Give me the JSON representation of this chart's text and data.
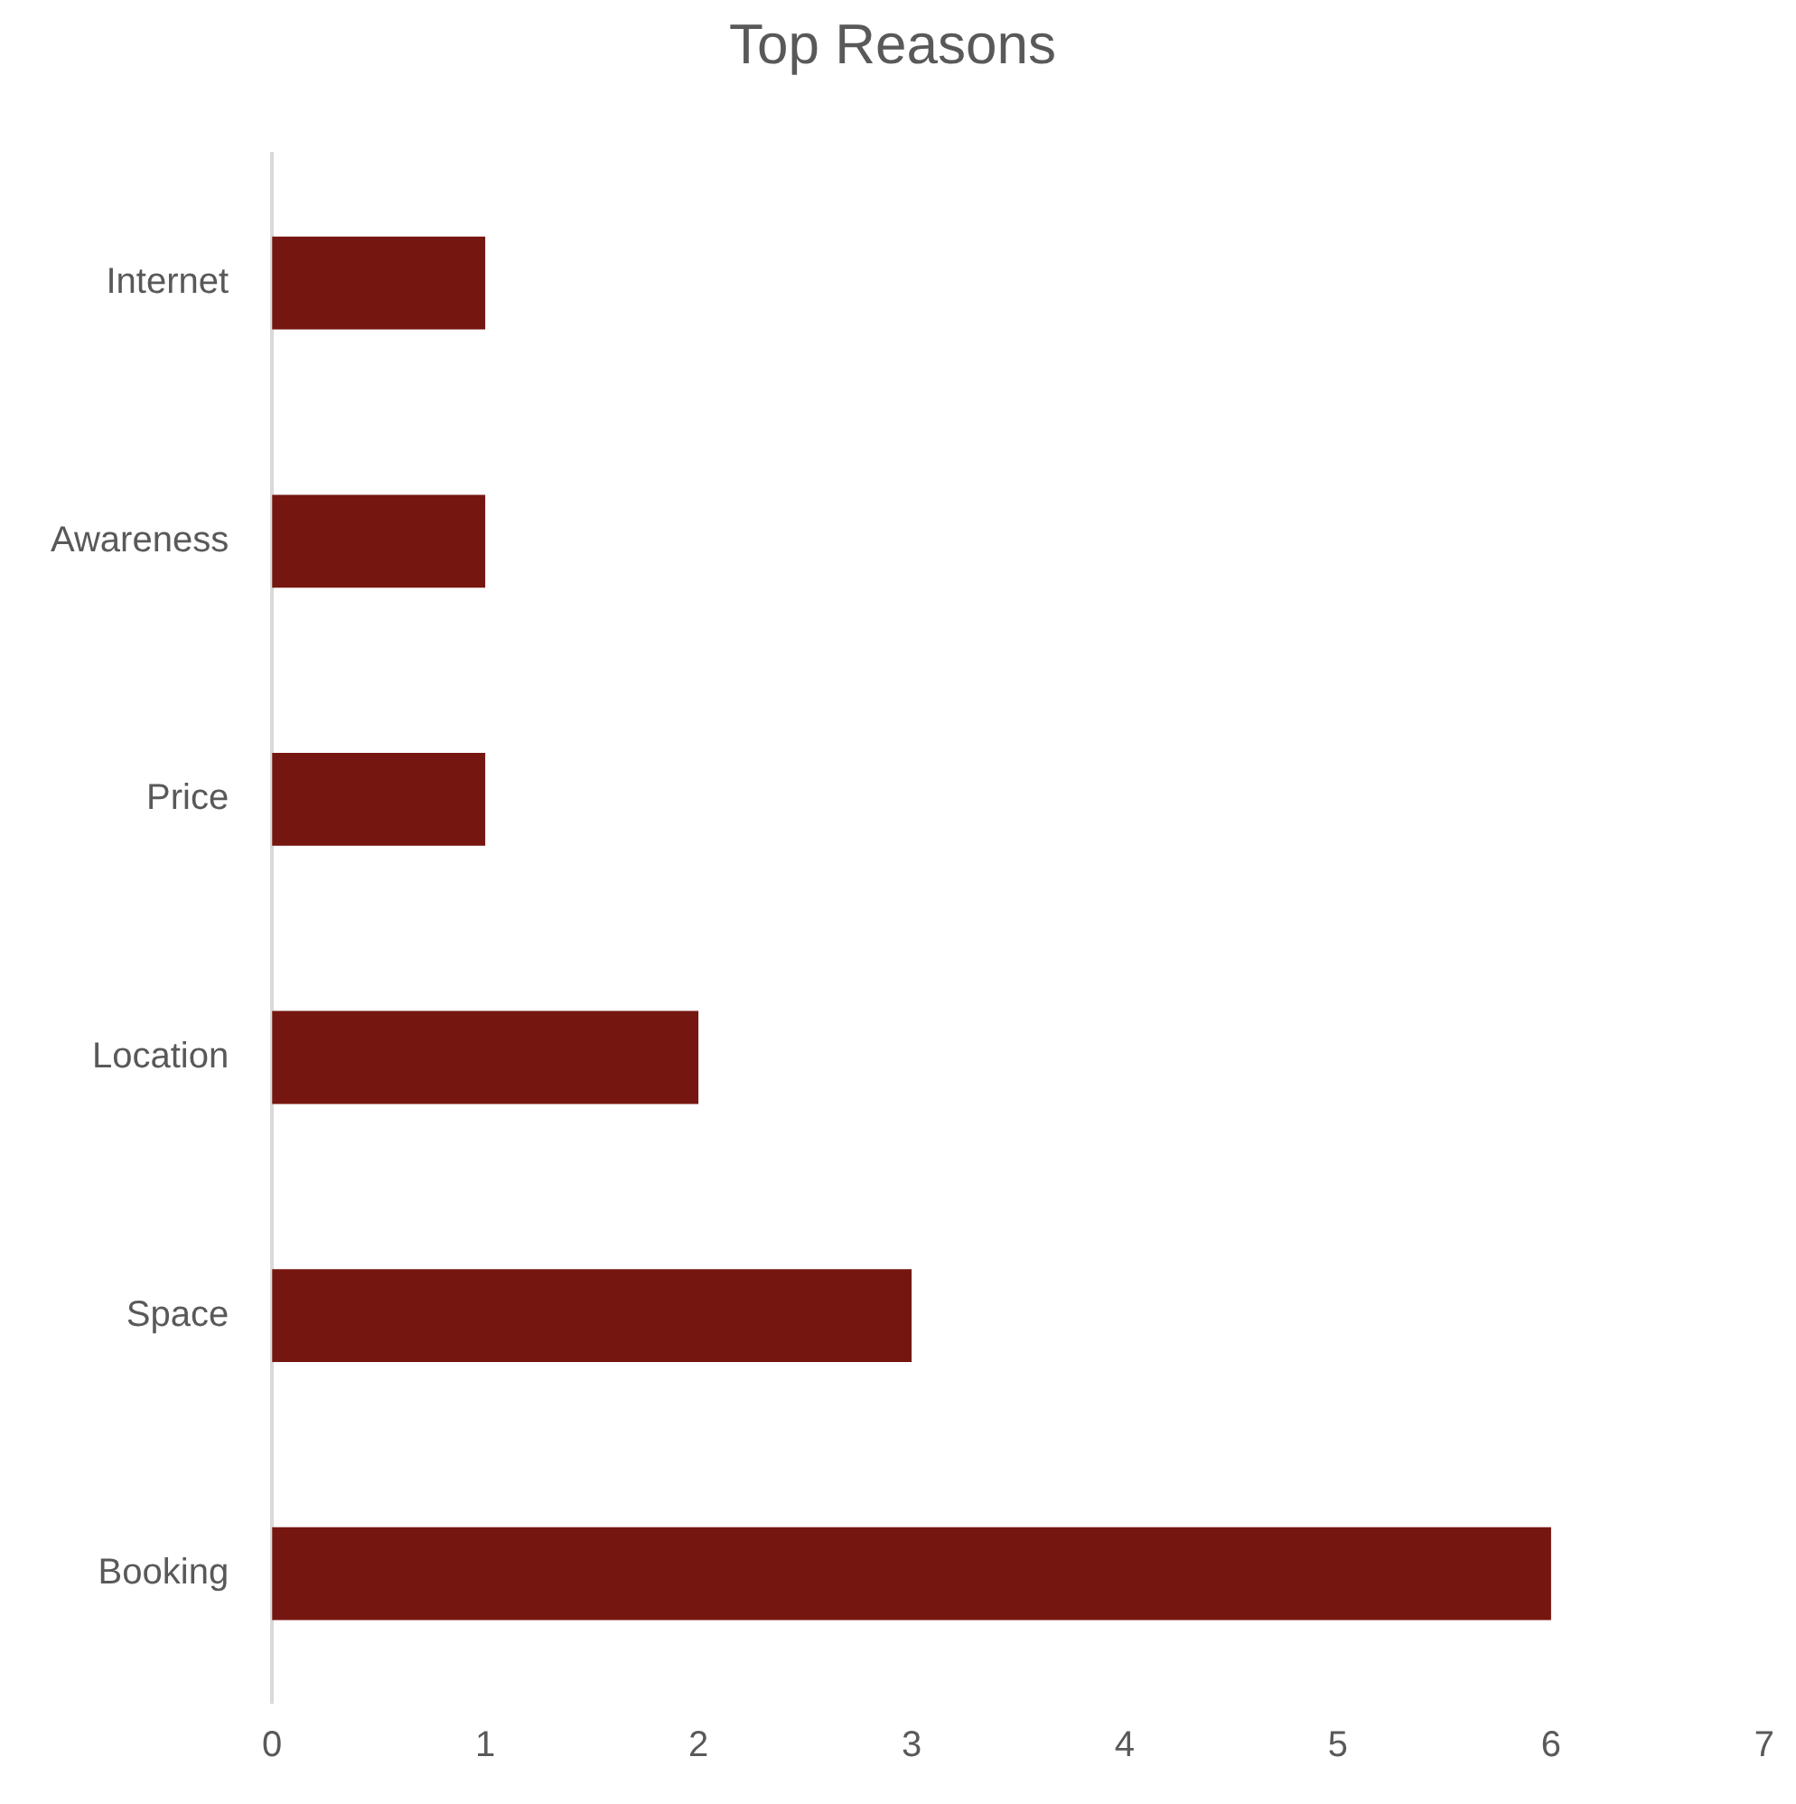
{
  "chart_data": {
    "type": "bar",
    "orientation": "horizontal",
    "title": "Top Reasons",
    "categories": [
      "Internet",
      "Awareness",
      "Price",
      "Location",
      "Space",
      "Booking"
    ],
    "values": [
      1,
      1,
      1,
      2,
      3,
      6
    ],
    "color": "#761610",
    "xlim": [
      0,
      7
    ],
    "xticks": [
      0,
      1,
      2,
      3,
      4,
      5,
      6,
      7
    ]
  }
}
